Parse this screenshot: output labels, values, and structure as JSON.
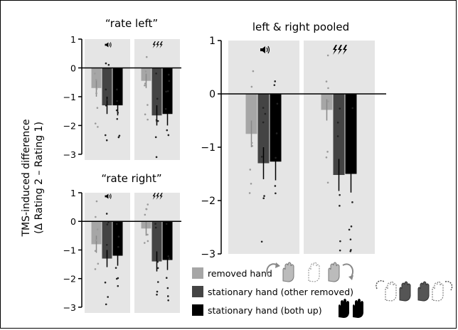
{
  "colors": {
    "panel_bg": "#e5e5e5",
    "removed": "#a6a6a6",
    "stationary_other": "#444444",
    "stationary_both": "#000000",
    "dots_light": "#9a9a9a",
    "dots_dark": "#222222"
  },
  "icons": {
    "sound": "speaker-icon",
    "tms": "lightning-bolt-icon",
    "hand_removed": "hand-lift-icon",
    "hand_stationary": "hand-stationary-icon",
    "hands_both": "two-hands-icon"
  },
  "texts": {
    "ylabel_line1": "TMS-induced difference",
    "ylabel_line2": "(Δ Rating 2 – Rating 1)"
  },
  "legend": [
    {
      "label": "removed hand",
      "color": "#a6a6a6"
    },
    {
      "label": "stationary hand (other removed)",
      "color": "#444444"
    },
    {
      "label": "stationary hand (both up)",
      "color": "#000000"
    }
  ],
  "chart_data": [
    {
      "type": "bar",
      "title": "“rate left”",
      "ylim": [
        -3.2,
        1
      ],
      "yticks": [
        "1",
        "0",
        "−1",
        "−2",
        "−3"
      ],
      "groups": [
        "sound",
        "TMS"
      ],
      "series": [
        {
          "name": "removed hand",
          "values": [
            -0.7,
            -0.45
          ],
          "errors": [
            0.3,
            0.25
          ]
        },
        {
          "name": "stationary hand (other removed)",
          "values": [
            -1.3,
            -1.65
          ],
          "errors": [
            0.3,
            0.35
          ]
        },
        {
          "name": "stationary hand (both up)",
          "values": [
            -1.3,
            -1.6
          ],
          "errors": [
            0.35,
            0.4
          ]
        }
      ]
    },
    {
      "type": "bar",
      "title": "“rate right”",
      "ylim": [
        -3.2,
        1
      ],
      "yticks": [
        "1",
        "0",
        "−1",
        "−2",
        "−3"
      ],
      "groups": [
        "sound",
        "TMS"
      ],
      "series": [
        {
          "name": "removed hand",
          "values": [
            -0.8,
            -0.25
          ],
          "errors": [
            0.3,
            0.25
          ]
        },
        {
          "name": "stationary hand (other removed)",
          "values": [
            -1.3,
            -1.4
          ],
          "errors": [
            0.3,
            0.35
          ]
        },
        {
          "name": "stationary hand (both up)",
          "values": [
            -1.2,
            -1.35
          ],
          "errors": [
            0.35,
            0.35
          ]
        }
      ]
    },
    {
      "type": "bar",
      "title": "left & right pooled",
      "ylim": [
        -3,
        1
      ],
      "yticks": [
        "1",
        "0",
        "−1",
        "−2",
        "−3"
      ],
      "groups": [
        "sound",
        "TMS"
      ],
      "series": [
        {
          "name": "removed hand",
          "values": [
            -0.75,
            -0.3
          ],
          "errors": [
            0.25,
            0.2
          ]
        },
        {
          "name": "stationary hand (other removed)",
          "values": [
            -1.3,
            -1.52
          ],
          "errors": [
            0.3,
            0.3
          ]
        },
        {
          "name": "stationary hand (both up)",
          "values": [
            -1.27,
            -1.5
          ],
          "errors": [
            0.35,
            0.35
          ]
        }
      ]
    }
  ]
}
